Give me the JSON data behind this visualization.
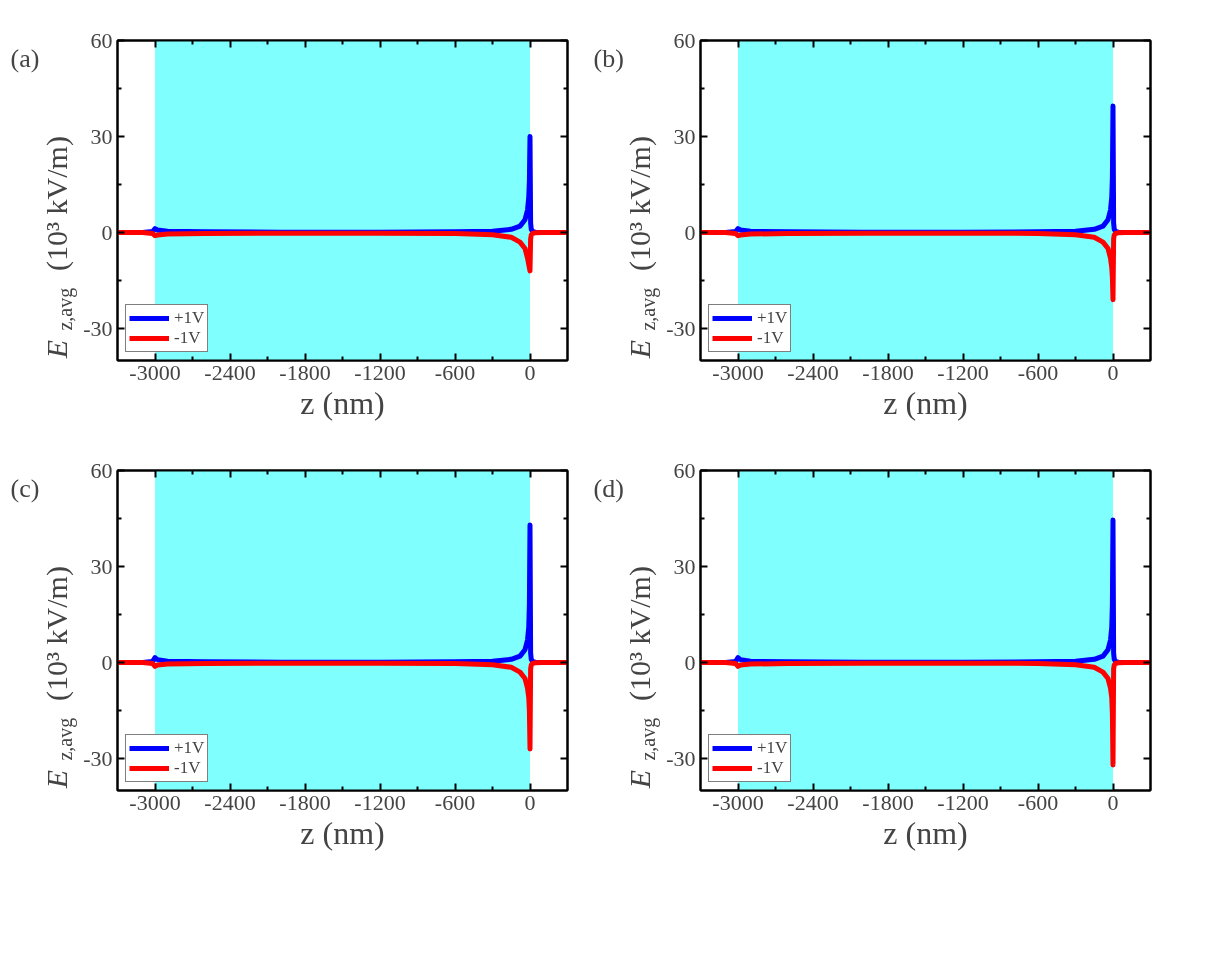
{
  "chart_data": [
    {
      "type": "line",
      "title": "(a)",
      "xlabel": "z (nm)",
      "ylabel": "E$_{z,avg}$ (10³ kV/m)",
      "xlim": [
        -3300,
        300
      ],
      "ylim": [
        -40,
        60
      ],
      "xticks": [
        -3000,
        -2400,
        -1800,
        -1200,
        -600,
        0
      ],
      "yticks": [
        -30,
        0,
        30,
        60
      ],
      "grid": false,
      "legend": "bottom left",
      "bands": [
        {
          "axis": "x",
          "from": -3000,
          "to": 0,
          "color": "#80ffff"
        }
      ],
      "x": [
        -3300,
        -3100,
        -3020,
        -3000,
        -2980,
        -2900,
        -2600,
        -2000,
        -1200,
        -600,
        -300,
        -150,
        -80,
        -40,
        -20,
        -10,
        -5,
        0,
        5,
        10,
        20,
        40,
        100,
        300
      ],
      "series": [
        {
          "name": "+1V",
          "color": "#0000ff",
          "values": [
            0,
            0,
            0.3,
            1.2,
            0.8,
            0.4,
            0.2,
            0.1,
            0.1,
            0.2,
            0.4,
            1,
            2,
            4,
            7,
            11,
            16,
            30,
            3,
            1,
            0.4,
            0.1,
            0,
            0
          ]
        },
        {
          "name": "-1V",
          "color": "#ff0000",
          "values": [
            0,
            0,
            -0.3,
            -1,
            -0.8,
            -0.5,
            -0.3,
            -0.2,
            -0.2,
            -0.3,
            -0.7,
            -1.5,
            -3,
            -5,
            -8,
            -10,
            -11,
            -12,
            -2,
            -0.8,
            -0.3,
            -0.1,
            0,
            0
          ]
        }
      ]
    },
    {
      "type": "line",
      "title": "(b)",
      "xlabel": "z (nm)",
      "ylabel": "E$_{z,avg}$ (10³ kV/m)",
      "xlim": [
        -3300,
        300
      ],
      "ylim": [
        -40,
        60
      ],
      "xticks": [
        -3000,
        -2400,
        -1800,
        -1200,
        -600,
        0
      ],
      "yticks": [
        -30,
        0,
        30,
        60
      ],
      "grid": false,
      "legend": "bottom left",
      "bands": [
        {
          "axis": "x",
          "from": -3000,
          "to": 0,
          "color": "#80ffff"
        }
      ],
      "x": [
        -3300,
        -3100,
        -3020,
        -3000,
        -2980,
        -2900,
        -2600,
        -2000,
        -1200,
        -600,
        -300,
        -150,
        -80,
        -40,
        -20,
        -10,
        -5,
        0,
        5,
        10,
        20,
        40,
        100,
        300
      ],
      "series": [
        {
          "name": "+1V",
          "color": "#0000ff",
          "values": [
            0,
            0,
            0.3,
            1.2,
            0.8,
            0.4,
            0.2,
            0.1,
            0.1,
            0.2,
            0.4,
            1,
            2,
            4,
            7,
            11,
            17,
            39.5,
            3,
            1,
            0.4,
            0.1,
            0,
            0
          ]
        },
        {
          "name": "-1V",
          "color": "#ff0000",
          "values": [
            0,
            0,
            -0.3,
            -1,
            -0.8,
            -0.5,
            -0.3,
            -0.2,
            -0.2,
            -0.3,
            -0.7,
            -1.5,
            -3,
            -5,
            -8,
            -11,
            -14,
            -21,
            -2,
            -0.8,
            -0.3,
            -0.1,
            0,
            0
          ]
        }
      ]
    },
    {
      "type": "line",
      "title": "(c)",
      "xlabel": "z (nm)",
      "ylabel": "E$_{z,avg}$ (10³ kV/m)",
      "xlim": [
        -3300,
        300
      ],
      "ylim": [
        -40,
        60
      ],
      "xticks": [
        -3000,
        -2400,
        -1800,
        -1200,
        -600,
        0
      ],
      "yticks": [
        -30,
        0,
        30,
        60
      ],
      "grid": false,
      "legend": "bottom left",
      "bands": [
        {
          "axis": "x",
          "from": -3000,
          "to": 0,
          "color": "#80ffff"
        }
      ],
      "x": [
        -3300,
        -3100,
        -3020,
        -3000,
        -2980,
        -2900,
        -2600,
        -2000,
        -1200,
        -600,
        -300,
        -150,
        -80,
        -40,
        -20,
        -10,
        -5,
        0,
        5,
        10,
        20,
        40,
        100,
        300
      ],
      "series": [
        {
          "name": "+1V",
          "color": "#0000ff",
          "values": [
            0,
            0,
            0.3,
            1.5,
            0.9,
            0.4,
            0.2,
            0.1,
            0.1,
            0.2,
            0.4,
            1,
            2,
            4,
            7,
            11,
            18,
            43,
            3,
            1,
            0.4,
            0.1,
            0,
            0
          ]
        },
        {
          "name": "-1V",
          "color": "#ff0000",
          "values": [
            0,
            0,
            -0.3,
            -1.2,
            -0.8,
            -0.5,
            -0.3,
            -0.2,
            -0.2,
            -0.3,
            -0.7,
            -1.5,
            -3,
            -5,
            -8,
            -11,
            -15,
            -27,
            -2,
            -0.8,
            -0.3,
            -0.1,
            0,
            0
          ]
        }
      ]
    },
    {
      "type": "line",
      "title": "(d)",
      "xlabel": "z (nm)",
      "ylabel": "E$_{z,avg}$ (10³ kV/m)",
      "xlim": [
        -3300,
        300
      ],
      "ylim": [
        -40,
        60
      ],
      "xticks": [
        -3000,
        -2400,
        -1800,
        -1200,
        -600,
        0
      ],
      "yticks": [
        -30,
        0,
        30,
        60
      ],
      "grid": false,
      "legend": "bottom left",
      "bands": [
        {
          "axis": "x",
          "from": -3000,
          "to": 0,
          "color": "#80ffff"
        }
      ],
      "x": [
        -3300,
        -3100,
        -3020,
        -3000,
        -2980,
        -2900,
        -2600,
        -2000,
        -1200,
        -600,
        -300,
        -150,
        -80,
        -40,
        -20,
        -10,
        -5,
        0,
        5,
        10,
        20,
        40,
        100,
        300
      ],
      "series": [
        {
          "name": "+1V",
          "color": "#0000ff",
          "values": [
            0,
            0,
            0.3,
            1.5,
            0.9,
            0.4,
            0.2,
            0.1,
            0.1,
            0.2,
            0.4,
            1,
            2,
            4,
            7,
            11,
            18,
            44.5,
            3,
            1,
            0.4,
            0.1,
            0,
            0
          ]
        },
        {
          "name": "-1V",
          "color": "#ff0000",
          "values": [
            0,
            0,
            -0.3,
            -1.2,
            -0.8,
            -0.5,
            -0.3,
            -0.2,
            -0.2,
            -0.3,
            -0.7,
            -1.5,
            -3,
            -5,
            -8,
            -11,
            -16,
            -32,
            -2,
            -0.8,
            -0.3,
            -0.1,
            0,
            0
          ]
        }
      ]
    }
  ]
}
